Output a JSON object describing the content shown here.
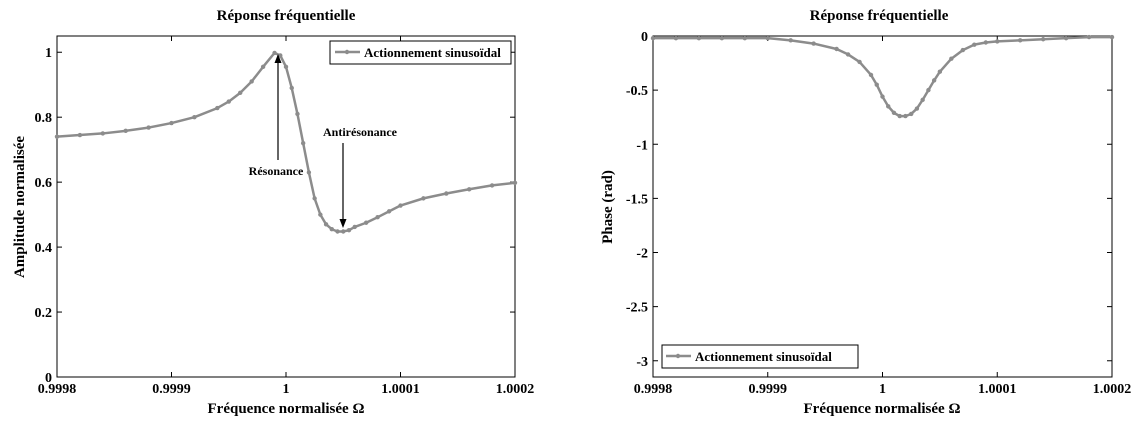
{
  "chart_data": [
    {
      "type": "line",
      "title": "Réponse fréquentielle",
      "xlabel": "Fréquence normalisée Ω",
      "ylabel": "Amplitude normalisée",
      "xlim": [
        0.9998,
        1.0002
      ],
      "ylim": [
        0,
        1.05
      ],
      "x_ticks": [
        0.9998,
        0.9999,
        1.0,
        1.0001,
        1.0002
      ],
      "x_tick_labels": [
        "0.9998",
        "0.9999",
        "1",
        "1.0001",
        "1.0002"
      ],
      "y_ticks": [
        0,
        0.2,
        0.4,
        0.6,
        0.8,
        1
      ],
      "y_tick_labels": [
        "0",
        "0.2",
        "0.4",
        "0.6",
        "0.8",
        "1"
      ],
      "legend_position": "top-right",
      "series": [
        {
          "name": "Actionnement sinusoïdal",
          "color": "#8c8c8c",
          "x": [
            0.9998,
            0.99982,
            0.99984,
            0.99986,
            0.99988,
            0.9999,
            0.99992,
            0.99994,
            0.99995,
            0.99996,
            0.99997,
            0.99998,
            0.99999,
            0.999995,
            1.0,
            1.000005,
            1.00001,
            1.000015,
            1.00002,
            1.000025,
            1.00003,
            1.000035,
            1.00004,
            1.000045,
            1.00005,
            1.000055,
            1.00006,
            1.00007,
            1.00008,
            1.00009,
            1.0001,
            1.00012,
            1.00014,
            1.00016,
            1.00018,
            1.0002
          ],
          "y": [
            0.74,
            0.745,
            0.75,
            0.758,
            0.768,
            0.782,
            0.8,
            0.828,
            0.848,
            0.875,
            0.91,
            0.955,
            0.998,
            0.99,
            0.955,
            0.89,
            0.81,
            0.72,
            0.63,
            0.55,
            0.5,
            0.47,
            0.455,
            0.448,
            0.448,
            0.452,
            0.462,
            0.475,
            0.492,
            0.51,
            0.528,
            0.55,
            0.565,
            0.578,
            0.59,
            0.598
          ]
        }
      ],
      "annotations": [
        {
          "text": "Résonance",
          "x": 0.99999,
          "y": 1.0
        },
        {
          "text": "Antirésonance",
          "x": 1.00005,
          "y": 0.448
        }
      ]
    },
    {
      "type": "line",
      "title": "Réponse fréquentielle",
      "xlabel": "Fréquence normalisée Ω",
      "ylabel": "Phase (rad)",
      "xlim": [
        0.9998,
        1.0002
      ],
      "ylim": [
        -3.15,
        0
      ],
      "x_ticks": [
        0.9998,
        0.9999,
        1.0,
        1.0001,
        1.0002
      ],
      "x_tick_labels": [
        "0.9998",
        "0.9999",
        "1",
        "1.0001",
        "1.0002"
      ],
      "y_ticks": [
        0,
        -0.5,
        -1,
        -1.5,
        -2,
        -2.5,
        -3
      ],
      "y_tick_labels": [
        "0",
        "-0.5",
        "-1",
        "-1.5",
        "-2",
        "-2.5",
        "-3"
      ],
      "legend_position": "bottom-left",
      "series": [
        {
          "name": "Actionnement sinusoïdal",
          "color": "#8c8c8c",
          "x": [
            0.9998,
            0.99982,
            0.99984,
            0.99986,
            0.99988,
            0.9999,
            0.99992,
            0.99994,
            0.99996,
            0.99997,
            0.99998,
            0.99999,
            0.999995,
            1.0,
            1.000005,
            1.00001,
            1.000015,
            1.00002,
            1.000025,
            1.00003,
            1.000035,
            1.00004,
            1.000045,
            1.00005,
            1.00006,
            1.00007,
            1.00008,
            1.00009,
            1.0001,
            1.00012,
            1.00014,
            1.00016,
            1.00018,
            1.0002
          ],
          "y": [
            -0.02,
            -0.02,
            -0.02,
            -0.02,
            -0.02,
            -0.02,
            -0.04,
            -0.07,
            -0.12,
            -0.17,
            -0.24,
            -0.36,
            -0.45,
            -0.56,
            -0.65,
            -0.71,
            -0.74,
            -0.74,
            -0.72,
            -0.67,
            -0.59,
            -0.5,
            -0.41,
            -0.33,
            -0.21,
            -0.13,
            -0.08,
            -0.06,
            -0.05,
            -0.04,
            -0.03,
            -0.02,
            -0.01,
            -0.01
          ]
        }
      ]
    }
  ]
}
